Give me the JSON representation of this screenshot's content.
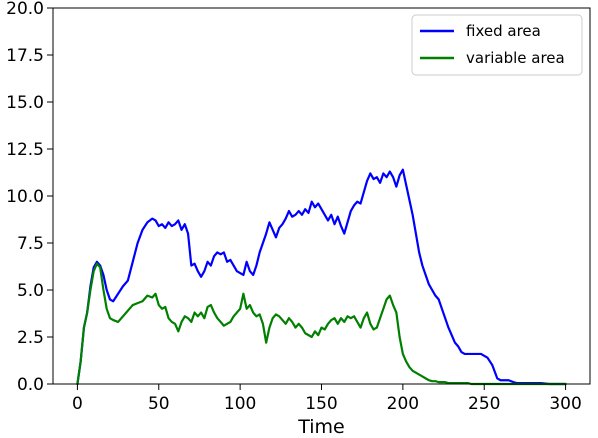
{
  "chart_data": {
    "type": "line",
    "xlabel": "Time",
    "ylabel": "",
    "xlim": [
      -15,
      315
    ],
    "ylim": [
      0,
      20
    ],
    "xticks": [
      0,
      50,
      100,
      150,
      200,
      250,
      300
    ],
    "xtick_labels": [
      "0",
      "50",
      "100",
      "150",
      "200",
      "250",
      "300"
    ],
    "yticks": [
      0,
      2.5,
      5,
      7.5,
      10,
      12.5,
      15,
      17.5,
      20
    ],
    "ytick_labels": [
      "0.0",
      "2.5",
      "5.0",
      "7.5",
      "10.0",
      "12.5",
      "15.0",
      "17.5",
      "20.0"
    ],
    "grid": false,
    "legend_position": "top-right",
    "series": [
      {
        "name": "fixed area",
        "color": "#0000ff",
        "x": [
          0,
          2,
          4,
          6,
          8,
          10,
          12,
          14,
          16,
          18,
          20,
          22,
          25,
          28,
          31,
          34,
          37,
          40,
          43,
          46,
          48,
          50,
          52,
          54,
          56,
          58,
          60,
          62,
          64,
          66,
          68,
          70,
          72,
          74,
          76,
          78,
          80,
          82,
          84,
          86,
          88,
          90,
          92,
          94,
          96,
          98,
          100,
          102,
          104,
          106,
          108,
          110,
          112,
          114,
          116,
          118,
          120,
          122,
          124,
          126,
          128,
          130,
          132,
          134,
          136,
          138,
          140,
          142,
          144,
          146,
          148,
          150,
          152,
          154,
          156,
          158,
          160,
          162,
          164,
          166,
          168,
          170,
          172,
          174,
          176,
          178,
          180,
          182,
          184,
          186,
          188,
          190,
          192,
          194,
          196,
          198,
          200,
          202,
          204,
          206,
          208,
          210,
          212,
          214,
          216,
          218,
          220,
          222,
          224,
          226,
          228,
          230,
          232,
          234,
          236,
          238,
          240,
          242,
          244,
          246,
          248,
          250,
          252,
          255,
          258,
          260,
          262,
          265,
          268,
          270,
          272,
          275,
          280,
          285,
          290,
          295,
          300
        ],
        "values": [
          0,
          1.2,
          3.0,
          3.8,
          5.2,
          6.2,
          6.5,
          6.3,
          5.8,
          5.0,
          4.5,
          4.4,
          4.8,
          5.2,
          5.5,
          6.5,
          7.5,
          8.2,
          8.6,
          8.8,
          8.7,
          8.4,
          8.5,
          8.3,
          8.6,
          8.4,
          8.5,
          8.7,
          8.2,
          8.5,
          8.0,
          6.3,
          6.4,
          6.0,
          5.7,
          6.0,
          6.5,
          6.3,
          6.8,
          7.0,
          6.9,
          7.0,
          6.5,
          6.6,
          6.3,
          6.0,
          5.9,
          5.8,
          6.5,
          6.0,
          5.8,
          6.3,
          7.0,
          7.5,
          8.0,
          8.6,
          8.2,
          7.8,
          8.3,
          8.5,
          8.8,
          9.2,
          8.9,
          9.0,
          9.2,
          9.0,
          9.3,
          9.1,
          9.7,
          9.4,
          9.6,
          9.3,
          9.0,
          8.7,
          9.0,
          8.5,
          8.9,
          8.4,
          8.0,
          8.6,
          9.2,
          9.5,
          9.7,
          9.6,
          10.2,
          10.8,
          11.2,
          10.9,
          11.0,
          10.7,
          11.2,
          11.0,
          11.3,
          11.0,
          10.5,
          11.1,
          11.4,
          10.6,
          9.8,
          9.0,
          8.0,
          7.0,
          6.3,
          5.8,
          5.3,
          5.0,
          4.7,
          4.5,
          4.0,
          3.5,
          3.0,
          2.6,
          2.2,
          2.0,
          1.7,
          1.6,
          1.6,
          1.6,
          1.6,
          1.6,
          1.6,
          1.5,
          1.4,
          1.0,
          0.3,
          0.2,
          0.2,
          0.2,
          0.1,
          0.05,
          0.05,
          0.05,
          0.05,
          0.05,
          0,
          0,
          0
        ]
      },
      {
        "name": "variable area",
        "color": "#008000",
        "x": [
          0,
          2,
          4,
          6,
          8,
          10,
          12,
          14,
          16,
          18,
          20,
          22,
          25,
          28,
          31,
          34,
          37,
          40,
          43,
          46,
          48,
          50,
          52,
          54,
          56,
          58,
          60,
          62,
          64,
          66,
          68,
          70,
          72,
          74,
          76,
          78,
          80,
          82,
          84,
          86,
          88,
          90,
          92,
          94,
          96,
          98,
          100,
          102,
          104,
          106,
          108,
          110,
          112,
          114,
          116,
          118,
          120,
          122,
          124,
          126,
          128,
          130,
          132,
          134,
          136,
          138,
          140,
          142,
          144,
          146,
          148,
          150,
          152,
          154,
          156,
          158,
          160,
          162,
          164,
          166,
          168,
          170,
          172,
          174,
          176,
          178,
          180,
          182,
          184,
          186,
          188,
          190,
          192,
          194,
          196,
          198,
          200,
          202,
          204,
          206,
          208,
          210,
          212,
          214,
          216,
          218,
          220,
          222,
          224,
          226,
          228,
          230,
          232,
          234,
          236,
          238,
          240,
          242,
          244,
          246,
          248,
          250,
          252,
          255,
          258,
          260,
          262,
          265,
          268,
          270,
          272,
          275,
          280,
          285,
          290,
          295,
          300
        ],
        "values": [
          0,
          1.2,
          3.0,
          3.8,
          5.0,
          6.0,
          6.4,
          6.2,
          5.0,
          4.0,
          3.5,
          3.4,
          3.3,
          3.6,
          3.9,
          4.2,
          4.3,
          4.4,
          4.7,
          4.6,
          4.8,
          4.2,
          4.0,
          4.1,
          3.5,
          3.3,
          3.2,
          2.8,
          3.3,
          3.6,
          3.5,
          3.3,
          3.8,
          3.6,
          3.8,
          3.5,
          4.1,
          4.2,
          3.8,
          3.5,
          3.3,
          3.1,
          3.2,
          3.3,
          3.6,
          3.8,
          4.0,
          4.8,
          4.0,
          4.2,
          3.8,
          3.6,
          3.7,
          3.2,
          2.2,
          3.0,
          3.5,
          3.7,
          3.6,
          3.4,
          3.2,
          3.5,
          3.3,
          3.0,
          3.2,
          3.0,
          2.7,
          2.6,
          2.5,
          2.8,
          2.6,
          3.0,
          2.9,
          3.2,
          3.4,
          3.5,
          3.2,
          3.5,
          3.3,
          3.6,
          3.5,
          3.6,
          3.3,
          3.0,
          3.5,
          3.8,
          3.2,
          2.9,
          3.0,
          3.5,
          4.0,
          4.5,
          4.7,
          4.2,
          3.8,
          2.5,
          1.6,
          1.2,
          0.9,
          0.7,
          0.6,
          0.5,
          0.4,
          0.3,
          0.2,
          0.15,
          0.15,
          0.1,
          0.1,
          0.1,
          0.05,
          0.05,
          0.05,
          0.05,
          0.05,
          0.05,
          0.05,
          0,
          0,
          0,
          0,
          0,
          0,
          0,
          0,
          0,
          0,
          0,
          0,
          0,
          0,
          0,
          0,
          0,
          0,
          0,
          0
        ]
      }
    ]
  }
}
